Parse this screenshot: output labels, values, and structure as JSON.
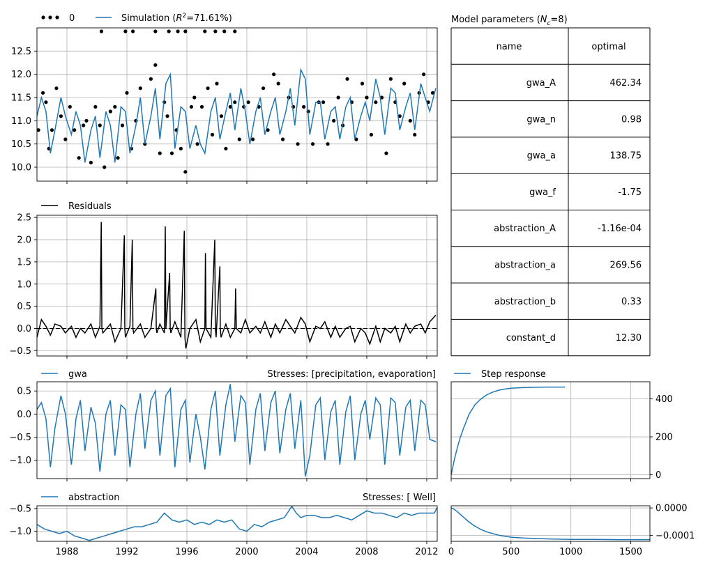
{
  "colors": {
    "simulation": "#1f77b4",
    "observed": "#000000",
    "residuals": "#000000",
    "grid": "#b0b0b0"
  },
  "chart_data": [
    {
      "type": "line",
      "panel": "head-fit",
      "legend": {
        "placement": "top-left, outside",
        "entries": [
          {
            "label": "0",
            "style": "dots",
            "color": "#000000"
          },
          {
            "label_prefix": "Simulation (",
            "label_math": "R",
            "label_sup": "2",
            "label_suffix": "=71.61%)",
            "style": "line",
            "color": "#1f77b4"
          }
        ]
      },
      "xlim": [
        1986.0,
        2012.7
      ],
      "ylim": [
        9.7,
        13.0
      ],
      "y_ticks": [
        "10.0",
        "10.5",
        "11.0",
        "11.5",
        "12.0",
        "12.5"
      ],
      "x_tick_values": [
        1988,
        1992,
        1996,
        2000,
        2004,
        2008,
        2012
      ],
      "grid": true,
      "simulation": {
        "x": [
          1986.0,
          1986.3,
          1986.6,
          1986.9,
          1987.2,
          1987.6,
          1987.9,
          1988.3,
          1988.6,
          1988.9,
          1989.2,
          1989.6,
          1989.9,
          1990.2,
          1990.6,
          1990.9,
          1991.2,
          1991.6,
          1991.9,
          1992.2,
          1992.6,
          1992.9,
          1993.2,
          1993.6,
          1993.9,
          1994.2,
          1994.6,
          1994.9,
          1995.2,
          1995.6,
          1995.9,
          1996.2,
          1996.6,
          1996.9,
          1997.2,
          1997.6,
          1997.9,
          1998.2,
          1998.6,
          1998.9,
          1999.2,
          1999.6,
          1999.9,
          2000.2,
          2000.6,
          2000.9,
          2001.2,
          2001.6,
          2001.9,
          2002.2,
          2002.6,
          2002.9,
          2003.2,
          2003.6,
          2003.9,
          2004.2,
          2004.6,
          2004.9,
          2005.2,
          2005.6,
          2005.9,
          2006.2,
          2006.6,
          2006.9,
          2007.2,
          2007.6,
          2007.9,
          2008.2,
          2008.6,
          2008.9,
          2009.2,
          2009.6,
          2009.9,
          2010.2,
          2010.6,
          2010.9,
          2011.2,
          2011.6,
          2011.9,
          2012.2,
          2012.6
        ],
        "y": [
          11.1,
          11.5,
          11.2,
          10.3,
          10.8,
          11.5,
          11.1,
          10.7,
          11.2,
          10.9,
          10.1,
          10.8,
          11.1,
          10.2,
          11.2,
          10.9,
          10.1,
          11.3,
          11.2,
          10.3,
          10.9,
          11.5,
          10.5,
          11.1,
          11.7,
          10.6,
          11.8,
          12.0,
          10.4,
          11.3,
          11.2,
          10.4,
          10.9,
          10.5,
          10.3,
          11.2,
          11.5,
          10.6,
          11.2,
          11.6,
          10.8,
          11.7,
          11.2,
          10.5,
          11.2,
          11.5,
          10.7,
          11.2,
          11.5,
          10.7,
          11.2,
          11.7,
          10.9,
          12.1,
          11.9,
          10.7,
          11.4,
          11.4,
          10.6,
          11.2,
          11.3,
          10.6,
          11.3,
          11.5,
          10.6,
          11.1,
          11.4,
          11.0,
          11.9,
          11.5,
          10.7,
          11.7,
          11.6,
          10.8,
          11.3,
          11.6,
          10.8,
          11.8,
          11.5,
          11.2,
          11.7
        ]
      },
      "observations": {
        "x": [
          1986.1,
          1986.4,
          1986.6,
          1986.8,
          1987.0,
          1987.3,
          1987.6,
          1987.9,
          1988.2,
          1988.5,
          1988.8,
          1989.1,
          1989.3,
          1989.6,
          1989.9,
          1990.2,
          1990.5,
          1990.9,
          1991.2,
          1991.4,
          1991.7,
          1992.0,
          1992.3,
          1992.6,
          1992.9,
          1993.2,
          1993.6,
          1993.9,
          1994.2,
          1994.5,
          1994.7,
          1995.0,
          1995.3,
          1995.6,
          1995.9,
          1996.3,
          1996.5,
          1996.7,
          1997.0,
          1997.4,
          1997.7,
          1998.0,
          1998.3,
          1998.6,
          1998.9,
          1999.2,
          1999.5,
          1999.8,
          2000.1,
          2000.4,
          2000.8,
          2001.1,
          2001.4,
          2001.8,
          2002.1,
          2002.4,
          2002.8,
          2003.1,
          2003.4,
          2003.8,
          2004.1,
          2004.4,
          2004.8,
          2005.1,
          2005.4,
          2005.8,
          2006.1,
          2006.4,
          2006.7,
          2007.0,
          2007.3,
          2007.7,
          2008.0,
          2008.3,
          2008.6,
          2009.0,
          2009.3,
          2009.6,
          2009.9,
          2010.2,
          2010.5,
          2010.9,
          2011.2,
          2011.5,
          2011.8,
          2012.1,
          2012.4
        ],
        "y": [
          10.8,
          11.6,
          11.4,
          10.4,
          10.8,
          11.7,
          11.1,
          10.6,
          11.3,
          10.8,
          10.2,
          10.9,
          11.0,
          10.1,
          11.3,
          10.9,
          10.0,
          11.2,
          11.3,
          10.2,
          10.9,
          11.6,
          10.4,
          11.0,
          11.7,
          10.5,
          11.9,
          12.2,
          10.3,
          11.4,
          11.1,
          10.3,
          10.8,
          10.4,
          9.9,
          11.3,
          11.5,
          10.5,
          11.3,
          11.7,
          10.7,
          11.8,
          11.1,
          10.4,
          11.3,
          11.4,
          10.6,
          11.3,
          11.4,
          10.6,
          11.3,
          11.7,
          10.8,
          12.0,
          11.8,
          10.6,
          11.5,
          11.3,
          10.5,
          11.3,
          11.2,
          10.5,
          11.4,
          11.4,
          10.5,
          11.0,
          11.5,
          10.9,
          11.9,
          11.4,
          10.6,
          11.8,
          11.5,
          10.7,
          11.4,
          11.5,
          10.3,
          11.9,
          11.4,
          11.1,
          11.8,
          11.0,
          10.7,
          11.6,
          12.0,
          11.4,
          11.6
        ]
      },
      "clipped_observations_x": [
        1990.3,
        1991.9,
        1992.4,
        1993.9,
        1994.8,
        1995.4,
        1995.9,
        1997.2,
        1997.9,
        1998.5,
        1999.2
      ]
    },
    {
      "type": "line",
      "panel": "residuals",
      "legend": {
        "placement": "top-left, outside",
        "entries": [
          {
            "label": "Residuals",
            "style": "line",
            "color": "#000000"
          }
        ]
      },
      "xlim": [
        1986.0,
        2012.7
      ],
      "ylim": [
        -0.62,
        2.55
      ],
      "y_ticks": [
        "−0.5",
        "0.0",
        "0.5",
        "1.0",
        "1.5",
        "2.0",
        "2.5"
      ],
      "grid": true,
      "zero_line": true,
      "x": [
        1986.0,
        1986.3,
        1986.6,
        1986.9,
        1987.2,
        1987.6,
        1987.9,
        1988.3,
        1988.6,
        1988.9,
        1989.2,
        1989.6,
        1989.9,
        1990.2,
        1990.29,
        1990.33,
        1990.4,
        1990.9,
        1991.2,
        1991.6,
        1991.83,
        1991.86,
        1991.9,
        1992.2,
        1992.36,
        1992.4,
        1992.45,
        1992.9,
        1993.2,
        1993.6,
        1993.93,
        1993.96,
        1994.0,
        1994.2,
        1994.5,
        1994.56,
        1994.6,
        1994.85,
        1994.89,
        1994.93,
        1995.2,
        1995.6,
        1995.83,
        1995.87,
        1995.93,
        1996.2,
        1996.6,
        1996.9,
        1997.2,
        1997.24,
        1997.28,
        1997.6,
        1997.86,
        1997.9,
        1997.95,
        1998.2,
        1998.23,
        1998.28,
        1998.6,
        1998.9,
        1999.2,
        1999.25,
        1999.3,
        1999.6,
        1999.9,
        2000.2,
        2000.6,
        2000.9,
        2001.2,
        2001.6,
        2001.9,
        2002.2,
        2002.6,
        2002.9,
        2003.2,
        2003.6,
        2003.9,
        2004.2,
        2004.6,
        2004.9,
        2005.2,
        2005.6,
        2005.9,
        2006.2,
        2006.6,
        2006.9,
        2007.2,
        2007.6,
        2007.9,
        2008.2,
        2008.6,
        2008.9,
        2009.2,
        2009.6,
        2009.9,
        2010.2,
        2010.6,
        2010.9,
        2011.2,
        2011.6,
        2011.9,
        2012.2,
        2012.6
      ],
      "y": [
        -0.2,
        0.2,
        0.05,
        -0.15,
        0.1,
        0.05,
        -0.1,
        0.05,
        -0.2,
        0.0,
        -0.1,
        0.1,
        -0.2,
        0.05,
        2.4,
        0.0,
        -0.1,
        0.1,
        -0.3,
        0.0,
        2.1,
        0.0,
        -0.2,
        0.05,
        2.0,
        0.0,
        -0.1,
        0.1,
        -0.2,
        0.0,
        0.9,
        0.0,
        -0.1,
        0.1,
        -0.1,
        2.3,
        0.0,
        1.25,
        0.0,
        -0.1,
        0.15,
        -0.2,
        2.2,
        -0.2,
        -0.45,
        0.0,
        0.2,
        -0.3,
        0.0,
        1.7,
        0.0,
        -0.2,
        2.0,
        0.0,
        -0.2,
        1.4,
        0.0,
        -0.2,
        0.1,
        -0.2,
        0.0,
        0.9,
        0.0,
        -0.1,
        0.2,
        -0.1,
        0.05,
        -0.1,
        0.15,
        -0.2,
        0.1,
        -0.1,
        0.2,
        0.05,
        -0.1,
        0.25,
        0.1,
        -0.3,
        0.05,
        0.0,
        0.15,
        -0.2,
        0.05,
        -0.2,
        0.0,
        0.05,
        -0.3,
        0.0,
        -0.1,
        -0.35,
        0.05,
        -0.3,
        0.0,
        -0.1,
        0.05,
        -0.3,
        0.1,
        -0.1,
        0.05,
        0.1,
        -0.1,
        0.15,
        0.3
      ]
    },
    {
      "type": "line",
      "panel": "contribution-gwa",
      "legend": {
        "placement": "top-left, outside",
        "entries": [
          {
            "label": "gwa",
            "style": "line",
            "color": "#1f77b4"
          }
        ]
      },
      "title_right": "Stresses: [precipitation, evaporation]",
      "xlim": [
        1986.0,
        2012.7
      ],
      "ylim": [
        -1.4,
        0.7
      ],
      "y_ticks": [
        "0.5",
        "0.0",
        "−0.5",
        "−1.0"
      ],
      "grid": true,
      "x": [
        1986.0,
        1986.3,
        1986.6,
        1986.9,
        1987.2,
        1987.6,
        1987.9,
        1988.3,
        1988.6,
        1988.9,
        1989.2,
        1989.6,
        1989.9,
        1990.2,
        1990.6,
        1990.9,
        1991.2,
        1991.6,
        1991.9,
        1992.2,
        1992.6,
        1992.9,
        1993.2,
        1993.6,
        1993.9,
        1994.2,
        1994.6,
        1994.9,
        1995.2,
        1995.6,
        1995.9,
        1996.2,
        1996.6,
        1996.9,
        1997.2,
        1997.6,
        1997.9,
        1998.2,
        1998.6,
        1998.9,
        1999.2,
        1999.6,
        1999.9,
        2000.2,
        2000.6,
        2000.9,
        2001.2,
        2001.6,
        2001.9,
        2002.2,
        2002.6,
        2002.9,
        2003.2,
        2003.6,
        2003.9,
        2004.2,
        2004.6,
        2004.9,
        2005.2,
        2005.6,
        2005.9,
        2006.2,
        2006.6,
        2006.9,
        2007.2,
        2007.6,
        2007.9,
        2008.2,
        2008.6,
        2008.9,
        2009.2,
        2009.6,
        2009.9,
        2010.2,
        2010.6,
        2010.9,
        2011.2,
        2011.6,
        2011.9,
        2012.2,
        2012.6
      ],
      "y": [
        0.1,
        0.25,
        -0.1,
        -1.15,
        -0.3,
        0.4,
        0.0,
        -1.1,
        -0.1,
        0.3,
        -0.8,
        0.15,
        -0.2,
        -1.25,
        0.0,
        0.3,
        -0.9,
        0.2,
        0.1,
        -1.15,
        0.0,
        0.45,
        -0.75,
        0.3,
        0.5,
        -0.9,
        0.4,
        0.55,
        -1.15,
        0.1,
        0.3,
        -1.05,
        0.0,
        -0.5,
        -1.2,
        0.1,
        0.5,
        -0.9,
        0.2,
        0.65,
        -0.6,
        0.4,
        0.25,
        -1.1,
        0.1,
        0.45,
        -0.8,
        0.25,
        0.5,
        -0.85,
        0.1,
        0.45,
        -0.75,
        0.3,
        -1.35,
        -0.9,
        0.2,
        0.35,
        -1.0,
        0.05,
        0.3,
        -1.1,
        0.05,
        0.4,
        -1.0,
        0.0,
        0.3,
        -0.55,
        0.35,
        0.2,
        -1.1,
        0.35,
        0.25,
        -0.9,
        0.15,
        0.3,
        -0.8,
        0.3,
        0.2,
        -0.55,
        -0.6
      ]
    },
    {
      "type": "line",
      "panel": "contribution-abstraction",
      "legend": {
        "placement": "top-left, outside",
        "entries": [
          {
            "label": "abstraction",
            "style": "line",
            "color": "#1f77b4"
          }
        ]
      },
      "title_right": "Stresses: [ Well]",
      "xlim": [
        1986.0,
        2012.7
      ],
      "ylim": [
        -1.22,
        -0.44
      ],
      "y_ticks": [
        "−0.5",
        "−1.0"
      ],
      "x_ticks": [
        "1988",
        "1992",
        "1996",
        "2000",
        "2004",
        "2008",
        "2012"
      ],
      "grid": true,
      "x": [
        1986.0,
        1986.5,
        1987.0,
        1987.5,
        1988.0,
        1988.5,
        1989.0,
        1989.5,
        1990.0,
        1990.5,
        1991.0,
        1991.5,
        1992.0,
        1992.5,
        1993.0,
        1993.5,
        1994.0,
        1994.5,
        1995.0,
        1995.5,
        1996.0,
        1996.5,
        1997.0,
        1997.5,
        1998.0,
        1998.5,
        1999.0,
        1999.5,
        2000.0,
        2000.5,
        2001.0,
        2001.5,
        2002.0,
        2002.5,
        2003.0,
        2003.3,
        2003.6,
        2004.0,
        2004.5,
        2005.0,
        2005.5,
        2006.0,
        2006.5,
        2007.0,
        2007.5,
        2008.0,
        2008.5,
        2009.0,
        2009.5,
        2010.0,
        2010.5,
        2011.0,
        2011.5,
        2012.0,
        2012.5,
        2012.7
      ],
      "y": [
        -0.85,
        -0.95,
        -1.0,
        -1.05,
        -1.0,
        -1.1,
        -1.15,
        -1.2,
        -1.15,
        -1.1,
        -1.05,
        -1.0,
        -0.95,
        -0.9,
        -0.9,
        -0.85,
        -0.8,
        -0.6,
        -0.75,
        -0.8,
        -0.75,
        -0.85,
        -0.8,
        -0.85,
        -0.75,
        -0.8,
        -0.75,
        -0.95,
        -1.0,
        -0.85,
        -0.9,
        -0.8,
        -0.75,
        -0.7,
        -0.45,
        -0.6,
        -0.7,
        -0.65,
        -0.65,
        -0.7,
        -0.7,
        -0.65,
        -0.7,
        -0.75,
        -0.65,
        -0.55,
        -0.6,
        -0.6,
        -0.65,
        -0.7,
        -0.6,
        -0.65,
        -0.6,
        -0.6,
        -0.6,
        -0.48
      ]
    },
    {
      "type": "table",
      "panel": "parameters",
      "title_prefix": "Model parameters (",
      "title_math": "N",
      "title_sub": "c",
      "title_suffix": "=8)",
      "columns": [
        "name",
        "optimal"
      ],
      "rows": [
        [
          "gwa_A",
          "462.34"
        ],
        [
          "gwa_n",
          "0.98"
        ],
        [
          "gwa_a",
          "138.75"
        ],
        [
          "gwa_f",
          "-1.75"
        ],
        [
          "abstraction_A",
          "-1.16e-04"
        ],
        [
          "abstraction_a",
          "269.56"
        ],
        [
          "abstraction_b",
          "0.33"
        ],
        [
          "constant_d",
          "12.30"
        ]
      ]
    },
    {
      "type": "line",
      "panel": "step-response-gwa",
      "legend": {
        "placement": "top-left, outside",
        "entries": [
          {
            "label": "Step response",
            "style": "line",
            "color": "#1f77b4"
          }
        ]
      },
      "xlim": [
        0,
        1660
      ],
      "ylim": [
        -20,
        490
      ],
      "y_ticks": [
        "400",
        "200",
        "0"
      ],
      "y_tick_values": [
        400,
        200,
        0
      ],
      "x_tick_values": [
        0,
        500,
        1000,
        1500
      ],
      "y_axis_side": "right",
      "grid": true,
      "x": [
        0,
        25,
        50,
        75,
        100,
        150,
        200,
        250,
        300,
        350,
        400,
        450,
        500,
        600,
        700,
        800,
        900,
        950
      ],
      "y": [
        0,
        75,
        140,
        195,
        240,
        320,
        370,
        400,
        422,
        436,
        446,
        452,
        456,
        459,
        461,
        462,
        462,
        462
      ]
    },
    {
      "type": "line",
      "panel": "step-response-abstraction",
      "xlim": [
        0,
        1660
      ],
      "ylim": [
        -0.000122,
        8e-06
      ],
      "y_ticks": [
        "0.0000",
        "−0.0001"
      ],
      "y_tick_values": [
        0.0,
        -0.0001
      ],
      "x_ticks": [
        "0",
        "500",
        "1000",
        "1500"
      ],
      "x_tick_values": [
        0,
        500,
        1000,
        1500
      ],
      "y_axis_side": "right",
      "grid": true,
      "x": [
        0,
        25,
        50,
        100,
        150,
        200,
        250,
        300,
        400,
        500,
        600,
        800,
        1000,
        1200,
        1400,
        1660
      ],
      "y": [
        0.0,
        -5e-06,
        -1.3e-05,
        -3.3e-05,
        -5.2e-05,
        -6.7e-05,
        -7.9e-05,
        -8.8e-05,
        -0.0001,
        -0.000107,
        -0.00011,
        -0.000113,
        -0.000115,
        -0.000115,
        -0.000116,
        -0.000116
      ]
    }
  ]
}
